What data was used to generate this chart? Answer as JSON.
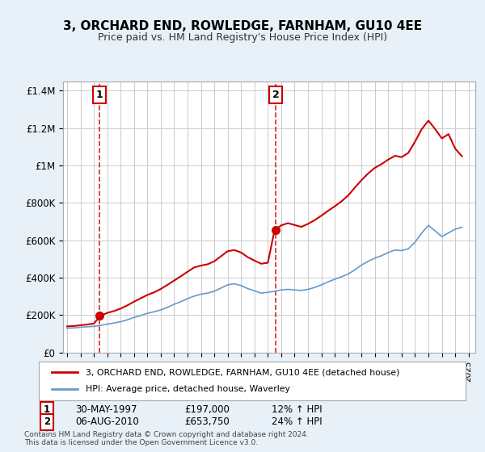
{
  "title": "3, ORCHARD END, ROWLEDGE, FARNHAM, GU10 4EE",
  "subtitle": "Price paid vs. HM Land Registry's House Price Index (HPI)",
  "legend_line1": "3, ORCHARD END, ROWLEDGE, FARNHAM, GU10 4EE (detached house)",
  "legend_line2": "HPI: Average price, detached house, Waverley",
  "sale1_label": "1",
  "sale1_date": "30-MAY-1997",
  "sale1_price": "£197,000",
  "sale1_hpi": "12% ↑ HPI",
  "sale1_year": 1997.42,
  "sale1_value": 197000,
  "sale2_label": "2",
  "sale2_date": "06-AUG-2010",
  "sale2_price": "£653,750",
  "sale2_hpi": "24% ↑ HPI",
  "sale2_year": 2010.6,
  "sale2_value": 653750,
  "price_line_color": "#cc0000",
  "hpi_line_color": "#6699cc",
  "background_color": "#e8f0f8",
  "plot_bg_color": "#ffffff",
  "grid_color": "#cccccc",
  "dashed_line_color": "#cc0000",
  "ylim": [
    0,
    1450000
  ],
  "xlim_start": 1995,
  "xlim_end": 2025.5,
  "yticks": [
    0,
    200000,
    400000,
    600000,
    800000,
    1000000,
    1200000,
    1400000
  ],
  "ytick_labels": [
    "£0",
    "£200K",
    "£400K",
    "£600K",
    "£800K",
    "£1M",
    "£1.2M",
    "£1.4M"
  ],
  "xtick_years": [
    1995,
    1996,
    1997,
    1998,
    1999,
    2000,
    2001,
    2002,
    2003,
    2004,
    2005,
    2006,
    2007,
    2008,
    2009,
    2010,
    2011,
    2012,
    2013,
    2014,
    2015,
    2016,
    2017,
    2018,
    2019,
    2020,
    2021,
    2022,
    2023,
    2024,
    2025
  ],
  "footer": "Contains HM Land Registry data © Crown copyright and database right 2024.\nThis data is licensed under the Open Government Licence v3.0.",
  "hpi_years": [
    1995,
    1995.5,
    1996,
    1996.5,
    1997,
    1997.5,
    1998,
    1998.5,
    1999,
    1999.5,
    2000,
    2000.5,
    2001,
    2001.5,
    2002,
    2002.5,
    2003,
    2003.5,
    2004,
    2004.5,
    2005,
    2005.5,
    2006,
    2006.5,
    2007,
    2007.5,
    2008,
    2008.5,
    2009,
    2009.5,
    2010,
    2010.5,
    2011,
    2011.5,
    2012,
    2012.5,
    2013,
    2013.5,
    2014,
    2014.5,
    2015,
    2015.5,
    2016,
    2016.5,
    2017,
    2017.5,
    2018,
    2018.5,
    2019,
    2019.5,
    2020,
    2020.5,
    2021,
    2021.5,
    2022,
    2022.5,
    2023,
    2023.5,
    2024,
    2024.5
  ],
  "hpi_values": [
    130000,
    132000,
    135000,
    138000,
    140000,
    145000,
    152000,
    158000,
    165000,
    175000,
    188000,
    198000,
    210000,
    218000,
    228000,
    242000,
    258000,
    272000,
    288000,
    302000,
    312000,
    318000,
    328000,
    345000,
    362000,
    368000,
    358000,
    342000,
    330000,
    318000,
    322000,
    328000,
    335000,
    338000,
    335000,
    332000,
    338000,
    348000,
    362000,
    378000,
    392000,
    405000,
    420000,
    442000,
    468000,
    488000,
    505000,
    518000,
    535000,
    548000,
    545000,
    555000,
    590000,
    640000,
    680000,
    650000,
    620000,
    640000,
    660000,
    670000
  ],
  "price_years": [
    1995.0,
    1995.5,
    1996.0,
    1996.5,
    1997.0,
    1997.5,
    1998.0,
    1998.5,
    1999.0,
    1999.5,
    2000.0,
    2000.5,
    2001.0,
    2001.5,
    2002.0,
    2002.5,
    2003.0,
    2003.5,
    2004.0,
    2004.5,
    2005.0,
    2005.5,
    2006.0,
    2006.5,
    2007.0,
    2007.5,
    2008.0,
    2008.5,
    2009.0,
    2009.5,
    2010.0,
    2010.5,
    2011.0,
    2011.5,
    2012.0,
    2012.5,
    2013.0,
    2013.5,
    2014.0,
    2014.5,
    2015.0,
    2015.5,
    2016.0,
    2016.5,
    2017.0,
    2017.5,
    2018.0,
    2018.5,
    2019.0,
    2019.5,
    2020.0,
    2020.5,
    2021.0,
    2021.5,
    2022.0,
    2022.5,
    2023.0,
    2023.5,
    2024.0,
    2024.5
  ],
  "price_values": [
    140000,
    142000,
    146000,
    150000,
    155000,
    197000,
    212000,
    222000,
    235000,
    252000,
    272000,
    290000,
    308000,
    322000,
    340000,
    362000,
    385000,
    408000,
    432000,
    455000,
    465000,
    472000,
    488000,
    515000,
    542000,
    548000,
    535000,
    510000,
    492000,
    475000,
    480000,
    653750,
    680000,
    692000,
    682000,
    672000,
    688000,
    708000,
    732000,
    758000,
    782000,
    808000,
    840000,
    882000,
    922000,
    958000,
    988000,
    1008000,
    1032000,
    1052000,
    1045000,
    1068000,
    1128000,
    1195000,
    1240000,
    1195000,
    1145000,
    1168000,
    1090000,
    1050000
  ]
}
